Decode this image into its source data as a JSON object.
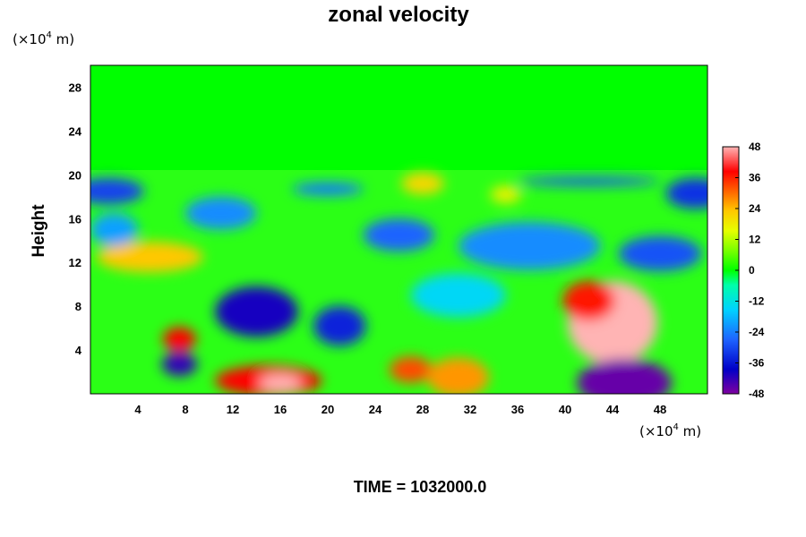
{
  "chart_data": {
    "type": "heatmap",
    "title": "zonal velocity",
    "ylabel": "Height",
    "xlabel": "",
    "x_unit": {
      "base": "(×10",
      "exp": "4",
      "tail": " m)"
    },
    "y_unit": {
      "base": "(×10",
      "exp": "4",
      "tail": " m)"
    },
    "xlim": [
      0,
      52
    ],
    "ylim": [
      0,
      30
    ],
    "x_ticks": [
      4,
      8,
      12,
      16,
      20,
      24,
      28,
      32,
      36,
      40,
      44,
      48
    ],
    "y_ticks": [
      4,
      8,
      12,
      16,
      20,
      24,
      28
    ],
    "colorbar": {
      "min": -48,
      "max": 48,
      "ticks": [
        48,
        36,
        24,
        12,
        0,
        -12,
        -24,
        -36,
        -48
      ]
    },
    "features": [
      {
        "x": 44,
        "y": 6.5,
        "rx": 3.8,
        "ry": 3.8,
        "value": 48
      },
      {
        "x": 42,
        "y": 8.5,
        "rx": 2.2,
        "ry": 1.8,
        "value": 38
      },
      {
        "x": 15,
        "y": 1.2,
        "rx": 4.5,
        "ry": 1.4,
        "value": 40
      },
      {
        "x": 16,
        "y": 1.0,
        "rx": 1.8,
        "ry": 0.8,
        "value": 48
      },
      {
        "x": 27,
        "y": 2.2,
        "rx": 1.8,
        "ry": 1.2,
        "value": 34
      },
      {
        "x": 31,
        "y": 1.5,
        "rx": 2.6,
        "ry": 1.8,
        "value": 28
      },
      {
        "x": 7.5,
        "y": 5.0,
        "rx": 1.4,
        "ry": 1.1,
        "value": 40
      },
      {
        "x": 5,
        "y": 12.5,
        "rx": 4.5,
        "ry": 1.4,
        "value": 24
      },
      {
        "x": 28,
        "y": 19.2,
        "rx": 1.8,
        "ry": 1.0,
        "value": 22
      },
      {
        "x": 35,
        "y": 18.2,
        "rx": 1.3,
        "ry": 0.8,
        "value": 18
      },
      {
        "x": 14,
        "y": 7.5,
        "rx": 3.5,
        "ry": 2.3,
        "value": -40
      },
      {
        "x": 21,
        "y": 6.2,
        "rx": 2.2,
        "ry": 1.8,
        "value": -34
      },
      {
        "x": 7.5,
        "y": 2.7,
        "rx": 1.5,
        "ry": 1.1,
        "value": -42
      },
      {
        "x": 45,
        "y": 1.0,
        "rx": 4.0,
        "ry": 2.2,
        "value": -46
      },
      {
        "x": 1.5,
        "y": 18.5,
        "rx": 3.0,
        "ry": 1.2,
        "value": -30
      },
      {
        "x": 51,
        "y": 18.3,
        "rx": 2.5,
        "ry": 1.4,
        "value": -32
      },
      {
        "x": 48,
        "y": 12.8,
        "rx": 3.5,
        "ry": 1.6,
        "value": -28
      },
      {
        "x": 37,
        "y": 13.5,
        "rx": 6.0,
        "ry": 2.2,
        "value": -22
      },
      {
        "x": 26,
        "y": 14.5,
        "rx": 3.0,
        "ry": 1.5,
        "value": -26
      },
      {
        "x": 11,
        "y": 16.5,
        "rx": 3.0,
        "ry": 1.5,
        "value": -22
      },
      {
        "x": 31,
        "y": 9.0,
        "rx": 4.0,
        "ry": 2.0,
        "value": -14
      },
      {
        "x": 2,
        "y": 15.0,
        "rx": 2.0,
        "ry": 1.5,
        "value": -20
      },
      {
        "x": 42,
        "y": 19.4,
        "rx": 6.0,
        "ry": 0.4,
        "value": -28
      },
      {
        "x": 20,
        "y": 18.7,
        "rx": 3.0,
        "ry": 0.6,
        "value": -24
      }
    ]
  },
  "footer": {
    "time_label": "TIME = 1032000.0"
  }
}
